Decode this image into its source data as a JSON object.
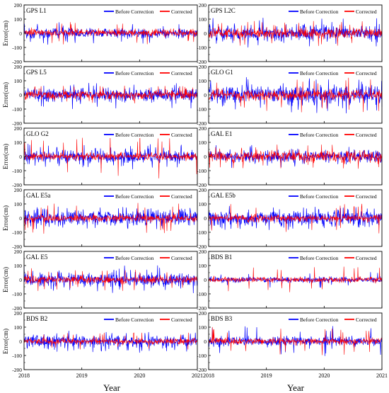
{
  "figure": {
    "ylabel": "Error(cm)",
    "xlabel": "Year",
    "x_ticks": [
      "2018",
      "2019",
      "2020",
      "2021"
    ],
    "y_ticks": [
      200,
      100,
      0,
      -100,
      -200
    ],
    "legend": {
      "before": "Before Correction",
      "after": "Corrected"
    },
    "colors": {
      "before": "#0000ff",
      "after": "#ff0000",
      "axis": "#000000",
      "background": "#ffffff"
    }
  },
  "chart_data": [
    {
      "type": "line",
      "title": "GPS L1",
      "xlim": [
        2018,
        2021
      ],
      "ylim": [
        -200,
        200
      ],
      "legend": "top-right",
      "series": [
        {
          "name": "Before Correction",
          "center": 0,
          "amplitude": 35,
          "spike": 80
        },
        {
          "name": "Corrected",
          "center": 5,
          "amplitude": 25,
          "spike": 85
        }
      ]
    },
    {
      "type": "line",
      "title": "GPS L2C",
      "xlim": [
        2018,
        2021
      ],
      "ylim": [
        -200,
        200
      ],
      "legend": "top-right",
      "series": [
        {
          "name": "Before Correction",
          "center": 0,
          "amplitude": 50,
          "spike": 110
        },
        {
          "name": "Corrected",
          "center": 0,
          "amplitude": 35,
          "spike": 90
        }
      ]
    },
    {
      "type": "line",
      "title": "GPS L5",
      "xlim": [
        2018,
        2021
      ],
      "ylim": [
        -200,
        200
      ],
      "legend": "top-right",
      "series": [
        {
          "name": "Before Correction",
          "center": 0,
          "amplitude": 45,
          "spike": 100
        },
        {
          "name": "Corrected",
          "center": 0,
          "amplitude": 30,
          "spike": 70
        }
      ]
    },
    {
      "type": "line",
      "title": "GLO G1",
      "xlim": [
        2018,
        2021
      ],
      "ylim": [
        -200,
        200
      ],
      "legend": "top-right",
      "series": [
        {
          "name": "Before Correction",
          "center": 0,
          "amplitude": 60,
          "spike": 130
        },
        {
          "name": "Corrected",
          "center": 0,
          "amplitude": 35,
          "spike": 130
        }
      ]
    },
    {
      "type": "line",
      "title": "GLO G2",
      "xlim": [
        2018,
        2021
      ],
      "ylim": [
        -200,
        200
      ],
      "legend": "top-right",
      "series": [
        {
          "name": "Before Correction",
          "center": 0,
          "amplitude": 40,
          "spike": 90
        },
        {
          "name": "Corrected",
          "center": 0,
          "amplitude": 25,
          "spike": 160
        }
      ]
    },
    {
      "type": "line",
      "title": "GAL E1",
      "xlim": [
        2018,
        2021
      ],
      "ylim": [
        -200,
        200
      ],
      "legend": "top-right",
      "series": [
        {
          "name": "Before Correction",
          "center": 0,
          "amplitude": 40,
          "spike": 80
        },
        {
          "name": "Corrected",
          "center": 0,
          "amplitude": 40,
          "spike": 85
        }
      ]
    },
    {
      "type": "line",
      "title": "GAL E5a",
      "xlim": [
        2018,
        2021
      ],
      "ylim": [
        -200,
        200
      ],
      "legend": "top-right",
      "series": [
        {
          "name": "Before Correction",
          "center": 0,
          "amplitude": 55,
          "spike": 80
        },
        {
          "name": "Corrected",
          "center": 0,
          "amplitude": 25,
          "spike": 110
        }
      ]
    },
    {
      "type": "line",
      "title": "GAL E5b",
      "xlim": [
        2018,
        2021
      ],
      "ylim": [
        -200,
        200
      ],
      "legend": "top-right",
      "series": [
        {
          "name": "Before Correction",
          "center": 0,
          "amplitude": 55,
          "spike": 85
        },
        {
          "name": "Corrected",
          "center": 0,
          "amplitude": 25,
          "spike": 110
        }
      ]
    },
    {
      "type": "line",
      "title": "GAL E5",
      "xlim": [
        2018,
        2021
      ],
      "ylim": [
        -200,
        200
      ],
      "legend": "top-right",
      "series": [
        {
          "name": "Before Correction",
          "center": 0,
          "amplitude": 45,
          "spike": 100
        },
        {
          "name": "Corrected",
          "center": 0,
          "amplitude": 25,
          "spike": 80
        }
      ]
    },
    {
      "type": "line",
      "title": "BDS B1",
      "xlim": [
        2018,
        2021
      ],
      "ylim": [
        -200,
        200
      ],
      "legend": "top-right",
      "series": [
        {
          "name": "Before Correction",
          "center": 0,
          "amplitude": 18,
          "spike": 55
        },
        {
          "name": "Corrected",
          "center": 0,
          "amplitude": 18,
          "spike": 95
        }
      ]
    },
    {
      "type": "line",
      "title": "BDS B2",
      "xlim": [
        2018,
        2021
      ],
      "ylim": [
        -200,
        200
      ],
      "legend": "top-right",
      "series": [
        {
          "name": "Before Correction",
          "center": 0,
          "amplitude": 40,
          "spike": 80
        },
        {
          "name": "Corrected",
          "center": 0,
          "amplitude": 20,
          "spike": 60
        }
      ]
    },
    {
      "type": "line",
      "title": "BDS B3",
      "xlim": [
        2018,
        2021
      ],
      "ylim": [
        -200,
        200
      ],
      "legend": "top-right",
      "series": [
        {
          "name": "Before Correction",
          "center": 0,
          "amplitude": 35,
          "spike": 110
        },
        {
          "name": "Corrected",
          "center": 0,
          "amplitude": 22,
          "spike": 100
        }
      ]
    }
  ]
}
